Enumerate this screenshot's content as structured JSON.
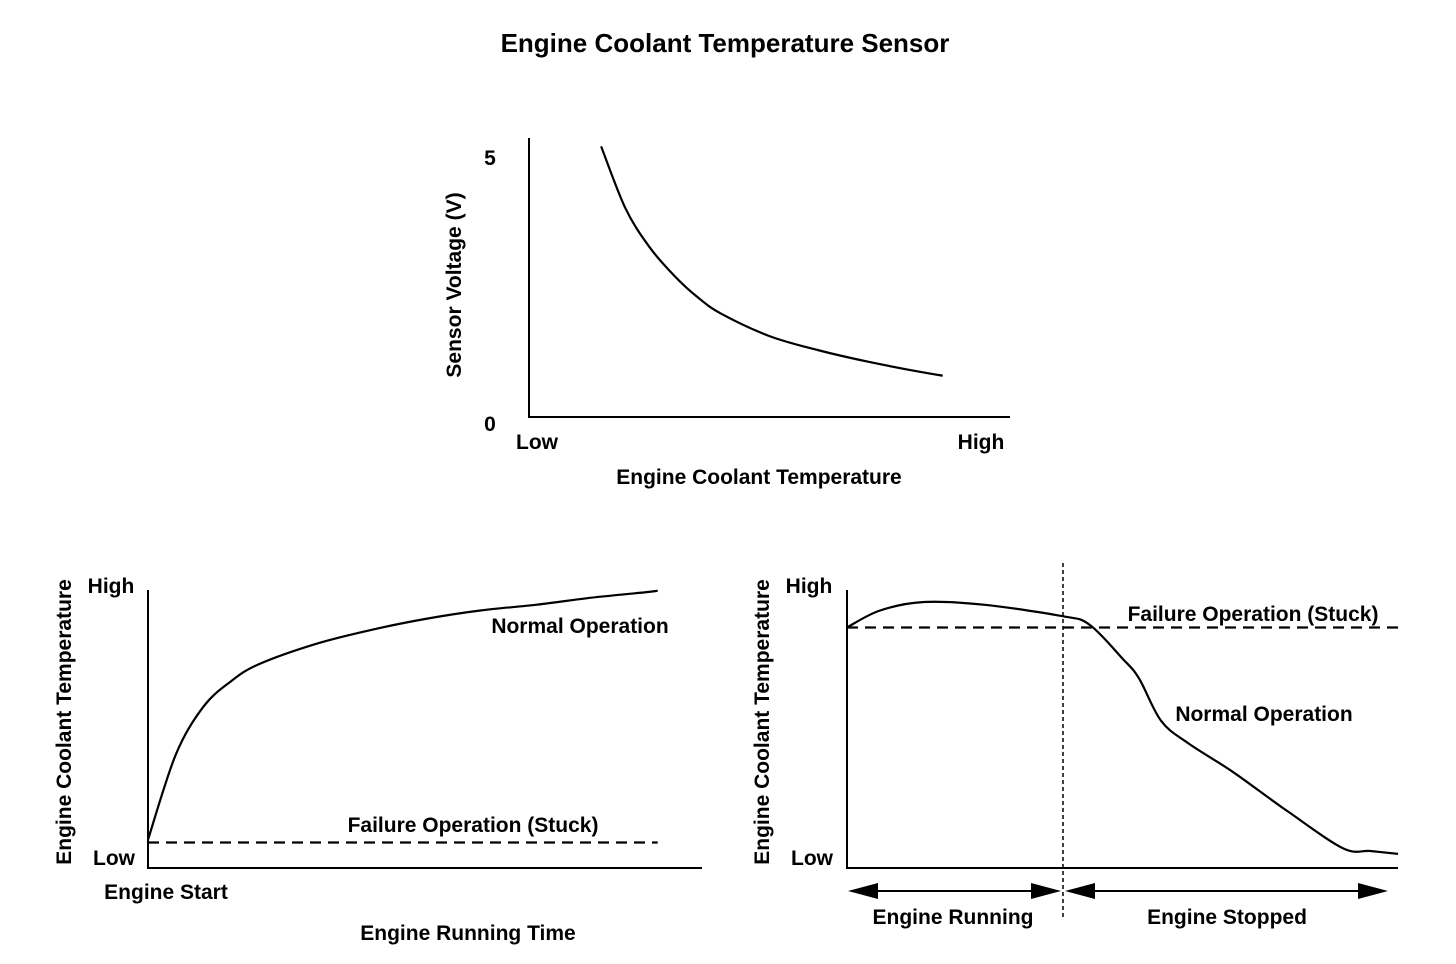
{
  "page_title": "Engine Coolant Temperature Sensor",
  "chart_data": [
    {
      "type": "line",
      "ylabel": "Sensor Voltage (V)",
      "xlabel": "Engine Coolant Temperature",
      "y_ticks": [
        "5",
        "0"
      ],
      "x_ticks": [
        "Low",
        "High"
      ],
      "ylim": [
        0,
        5
      ],
      "xlim": [
        0,
        1
      ],
      "series": [
        {
          "x": [
            0.15,
            0.2,
            0.25,
            0.3,
            0.35,
            0.4,
            0.5,
            0.6,
            0.7,
            0.8,
            0.86
          ],
          "y": [
            4.85,
            3.75,
            3.05,
            2.55,
            2.15,
            1.85,
            1.45,
            1.2,
            1.0,
            0.83,
            0.74
          ]
        }
      ]
    },
    {
      "type": "line",
      "ylabel": "Engine Coolant Temperature",
      "xlabel": "Engine Running Time",
      "y_ticks": [
        "High",
        "Low"
      ],
      "x_start_label": "Engine Start",
      "xlim": [
        0,
        1
      ],
      "ylim": [
        0,
        1
      ],
      "series": [
        {
          "name": "Normal Operation",
          "style": "solid",
          "x": [
            0,
            0.05,
            0.1,
            0.15,
            0.2,
            0.3,
            0.4,
            0.5,
            0.6,
            0.7,
            0.8,
            0.9,
            0.92
          ],
          "y": [
            0.1,
            0.4,
            0.57,
            0.66,
            0.72,
            0.79,
            0.84,
            0.88,
            0.91,
            0.93,
            0.955,
            0.975,
            0.98
          ]
        },
        {
          "name": "Failure Operation (Stuck)",
          "style": "dashed",
          "x": [
            0,
            0.92
          ],
          "y": [
            0.09,
            0.09
          ]
        }
      ]
    },
    {
      "type": "line",
      "ylabel": "Engine Coolant Temperature",
      "y_ticks": [
        "High",
        "Low"
      ],
      "phases": [
        "Engine Running",
        "Engine Stopped"
      ],
      "phase_divider_x": 0.39,
      "xlim": [
        0,
        1
      ],
      "ylim": [
        0,
        1
      ],
      "series": [
        {
          "name": "Normal Operation",
          "style": "solid",
          "x": [
            0,
            0.06,
            0.14,
            0.25,
            0.39,
            0.44,
            0.5,
            0.53,
            0.57,
            0.62,
            0.7,
            0.8,
            0.9,
            0.95,
            1.0
          ],
          "y": [
            0.85,
            0.91,
            0.94,
            0.93,
            0.89,
            0.86,
            0.74,
            0.67,
            0.52,
            0.44,
            0.34,
            0.2,
            0.07,
            0.06,
            0.05
          ]
        },
        {
          "name": "Failure Operation (Stuck)",
          "style": "dashed",
          "x": [
            0,
            1.0
          ],
          "y": [
            0.85,
            0.85
          ]
        }
      ]
    }
  ]
}
